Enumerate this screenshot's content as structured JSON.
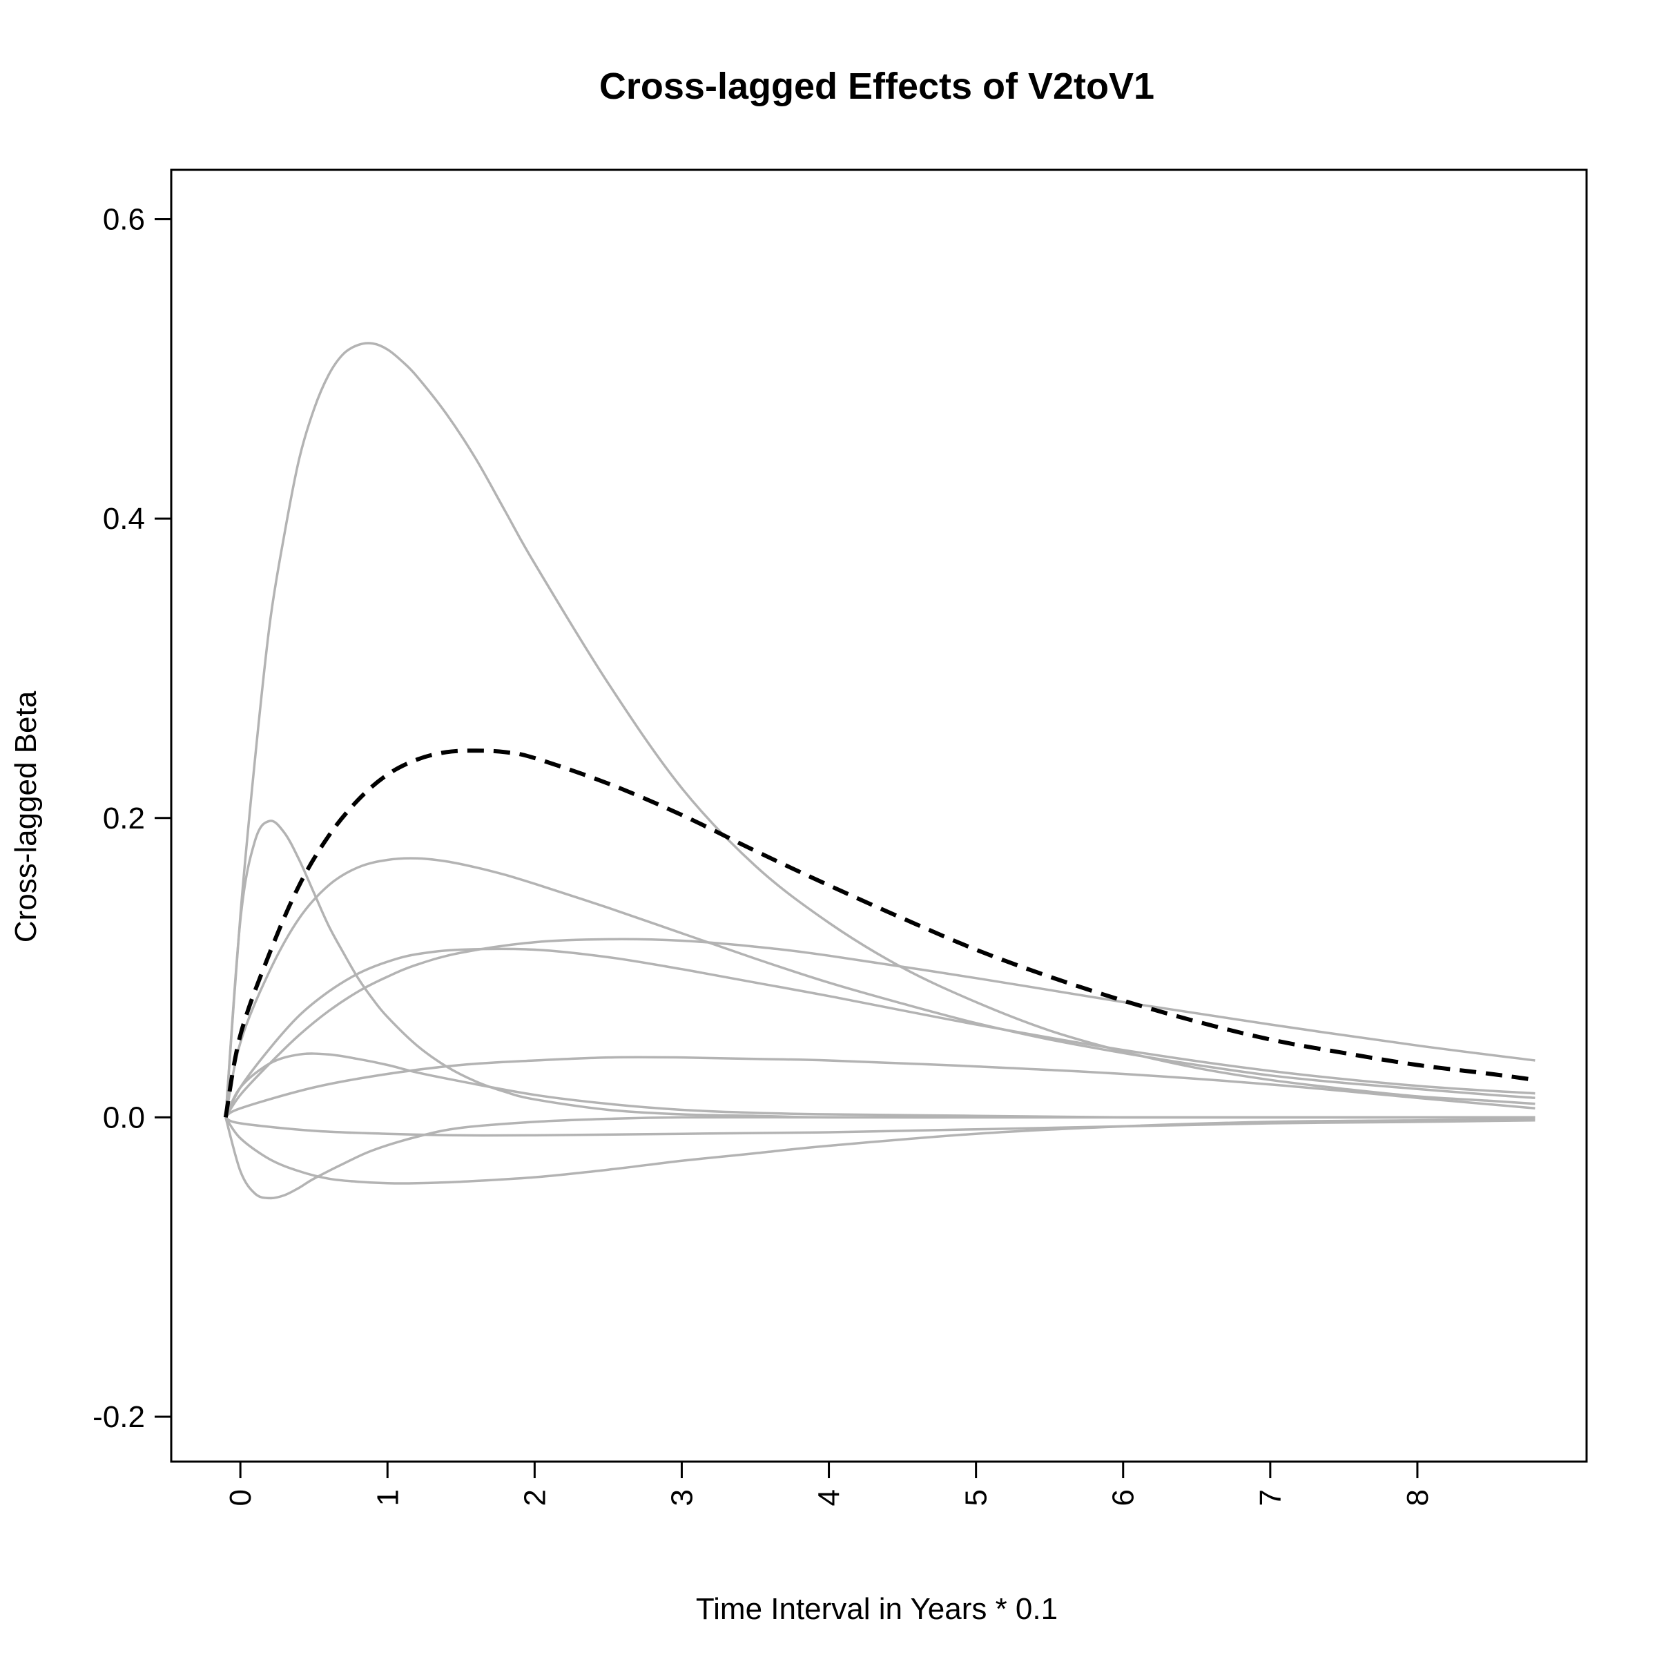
{
  "chart_data": {
    "type": "line",
    "title": "Cross-lagged Effects of V2toV1",
    "xlabel": "Time Interval in Years * 0.1",
    "ylabel": "Cross-lagged Beta",
    "xlim": [
      -0.47,
      9.15
    ],
    "ylim": [
      -0.23,
      0.633
    ],
    "x_ticks": [
      0,
      1,
      2,
      3,
      4,
      5,
      6,
      7,
      8
    ],
    "x_tick_labels": [
      "0",
      "1",
      "2",
      "3",
      "4",
      "5",
      "6",
      "7",
      "8"
    ],
    "y_ticks": [
      -0.2,
      0.0,
      0.2,
      0.4,
      0.6
    ],
    "y_tick_labels": [
      "-0.2",
      "0.0",
      "0.2",
      "0.4",
      "0.6"
    ],
    "grid": false,
    "legend": "none",
    "colors": {
      "individual": "#b3b3b3",
      "mean": "#000000",
      "axis": "#000000"
    },
    "series": [
      {
        "style": "solid",
        "color": "#b3b3b3",
        "x": [
          -0.1,
          0.0,
          0.1,
          0.2,
          0.3,
          0.4,
          0.5,
          0.6,
          0.7,
          0.8,
          0.9,
          1.0,
          1.1,
          1.2,
          1.4,
          1.6,
          1.8,
          2.0,
          2.5,
          3.0,
          3.5,
          4.0,
          4.5,
          5.0,
          5.5,
          6.0,
          6.5,
          7.0,
          7.5,
          8.0,
          8.5,
          8.8
        ],
        "y": [
          0.0,
          0.135,
          0.24,
          0.33,
          0.39,
          0.44,
          0.473,
          0.496,
          0.51,
          0.516,
          0.517,
          0.513,
          0.505,
          0.495,
          0.47,
          0.44,
          0.405,
          0.37,
          0.29,
          0.22,
          0.168,
          0.13,
          0.1,
          0.077,
          0.058,
          0.044,
          0.033,
          0.025,
          0.019,
          0.014,
          0.011,
          0.009
        ]
      },
      {
        "style": "solid",
        "color": "#b3b3b3",
        "x": [
          -0.1,
          0.0,
          0.1,
          0.2,
          0.3,
          0.4,
          0.5,
          0.6,
          0.7,
          0.8,
          0.9,
          1.0,
          1.2,
          1.4,
          1.6,
          1.8,
          2.0,
          2.5,
          3.0,
          3.5,
          4.0,
          5.0,
          6.0,
          7.0,
          8.0,
          8.8
        ],
        "y": [
          0.0,
          0.132,
          0.185,
          0.198,
          0.19,
          0.172,
          0.15,
          0.128,
          0.11,
          0.093,
          0.079,
          0.067,
          0.048,
          0.034,
          0.024,
          0.017,
          0.012,
          0.005,
          0.002,
          0.001,
          0.0,
          0.0,
          0.0,
          0.0,
          0.0,
          0.0
        ]
      },
      {
        "style": "solid",
        "color": "#b3b3b3",
        "x": [
          -0.1,
          0.0,
          0.2,
          0.4,
          0.6,
          0.8,
          1.0,
          1.2,
          1.4,
          1.6,
          1.8,
          2.0,
          2.5,
          3.0,
          3.5,
          4.0,
          4.5,
          5.0,
          5.5,
          6.0,
          6.5,
          7.0,
          7.5,
          8.0,
          8.5,
          8.8
        ],
        "y": [
          0.0,
          0.05,
          0.098,
          0.133,
          0.155,
          0.167,
          0.172,
          0.173,
          0.171,
          0.167,
          0.162,
          0.156,
          0.14,
          0.123,
          0.106,
          0.09,
          0.076,
          0.063,
          0.052,
          0.043,
          0.035,
          0.028,
          0.023,
          0.019,
          0.015,
          0.013
        ]
      },
      {
        "style": "solid",
        "color": "#b3b3b3",
        "x": [
          -0.1,
          0.0,
          0.2,
          0.4,
          0.6,
          0.8,
          1.0,
          1.2,
          1.5,
          2.0,
          2.5,
          3.0,
          3.5,
          4.0,
          5.0,
          6.0,
          7.0,
          8.0,
          8.8
        ],
        "y": [
          0.0,
          0.02,
          0.046,
          0.068,
          0.084,
          0.096,
          0.104,
          0.109,
          0.112,
          0.112,
          0.107,
          0.099,
          0.09,
          0.081,
          0.062,
          0.045,
          0.031,
          0.021,
          0.016
        ]
      },
      {
        "style": "solid",
        "color": "#b3b3b3",
        "x": [
          -0.1,
          0.0,
          0.2,
          0.4,
          0.6,
          0.8,
          1.0,
          1.2,
          1.5,
          2.0,
          2.5,
          3.0,
          3.5,
          4.0,
          5.0,
          6.0,
          7.0,
          8.0,
          8.8
        ],
        "y": [
          0.0,
          0.015,
          0.036,
          0.055,
          0.071,
          0.084,
          0.094,
          0.102,
          0.11,
          0.117,
          0.119,
          0.118,
          0.114,
          0.108,
          0.093,
          0.077,
          0.062,
          0.048,
          0.038
        ]
      },
      {
        "style": "solid",
        "color": "#b3b3b3",
        "x": [
          -0.1,
          0.0,
          0.2,
          0.4,
          0.6,
          0.8,
          1.0,
          1.2,
          1.5,
          2.0,
          2.5,
          3.0,
          3.5,
          4.0,
          5.0,
          6.0,
          7.0,
          8.0,
          8.8
        ],
        "y": [
          0.0,
          0.02,
          0.036,
          0.042,
          0.042,
          0.039,
          0.035,
          0.03,
          0.024,
          0.015,
          0.009,
          0.005,
          0.003,
          0.002,
          0.001,
          0.0,
          0.0,
          0.0,
          0.0
        ]
      },
      {
        "style": "solid",
        "color": "#b3b3b3",
        "x": [
          -0.1,
          0.0,
          0.5,
          1.0,
          1.5,
          2.0,
          2.5,
          3.0,
          3.5,
          4.0,
          5.0,
          6.0,
          7.0,
          8.0,
          8.8
        ],
        "y": [
          0.0,
          0.006,
          0.02,
          0.029,
          0.035,
          0.038,
          0.04,
          0.04,
          0.039,
          0.038,
          0.034,
          0.029,
          0.022,
          0.013,
          0.006
        ]
      },
      {
        "style": "solid",
        "color": "#b3b3b3",
        "x": [
          -0.1,
          0.0,
          0.1,
          0.2,
          0.3,
          0.4,
          0.5,
          0.7,
          0.9,
          1.2,
          1.5,
          2.0,
          2.5,
          3.0,
          4.0,
          5.0,
          6.0,
          7.0,
          8.0,
          8.8
        ],
        "y": [
          0.0,
          -0.036,
          -0.051,
          -0.054,
          -0.052,
          -0.047,
          -0.041,
          -0.031,
          -0.022,
          -0.013,
          -0.007,
          -0.003,
          -0.001,
          0.0,
          0.0,
          0.0,
          0.0,
          0.0,
          0.0,
          0.0
        ]
      },
      {
        "style": "solid",
        "color": "#b3b3b3",
        "x": [
          -0.1,
          0.0,
          0.2,
          0.4,
          0.6,
          0.8,
          1.0,
          1.2,
          1.5,
          2.0,
          2.5,
          3.0,
          3.5,
          4.0,
          5.0,
          6.0,
          7.0,
          8.0,
          8.8
        ],
        "y": [
          0.0,
          -0.014,
          -0.028,
          -0.036,
          -0.041,
          -0.043,
          -0.044,
          -0.044,
          -0.043,
          -0.04,
          -0.035,
          -0.029,
          -0.024,
          -0.019,
          -0.011,
          -0.006,
          -0.003,
          -0.002,
          -0.001
        ]
      },
      {
        "style": "solid",
        "color": "#b3b3b3",
        "x": [
          -0.1,
          0.0,
          0.5,
          1.0,
          1.5,
          2.0,
          3.0,
          4.0,
          5.0,
          6.0,
          7.0,
          8.0,
          8.8
        ],
        "y": [
          0.0,
          -0.004,
          -0.009,
          -0.011,
          -0.012,
          -0.012,
          -0.011,
          -0.01,
          -0.008,
          -0.006,
          -0.004,
          -0.003,
          -0.002
        ]
      },
      {
        "style": "dashed",
        "color": "#000000",
        "x": [
          -0.1,
          0.0,
          0.2,
          0.4,
          0.6,
          0.8,
          1.0,
          1.2,
          1.4,
          1.6,
          1.8,
          2.0,
          2.5,
          3.0,
          3.5,
          4.0,
          4.5,
          5.0,
          5.5,
          6.0,
          6.5,
          7.0,
          7.5,
          8.0,
          8.5,
          8.8
        ],
        "y": [
          0.0,
          0.055,
          0.11,
          0.155,
          0.188,
          0.212,
          0.229,
          0.239,
          0.244,
          0.245,
          0.244,
          0.24,
          0.223,
          0.202,
          0.178,
          0.155,
          0.133,
          0.112,
          0.094,
          0.078,
          0.064,
          0.052,
          0.043,
          0.035,
          0.029,
          0.025
        ]
      }
    ]
  }
}
